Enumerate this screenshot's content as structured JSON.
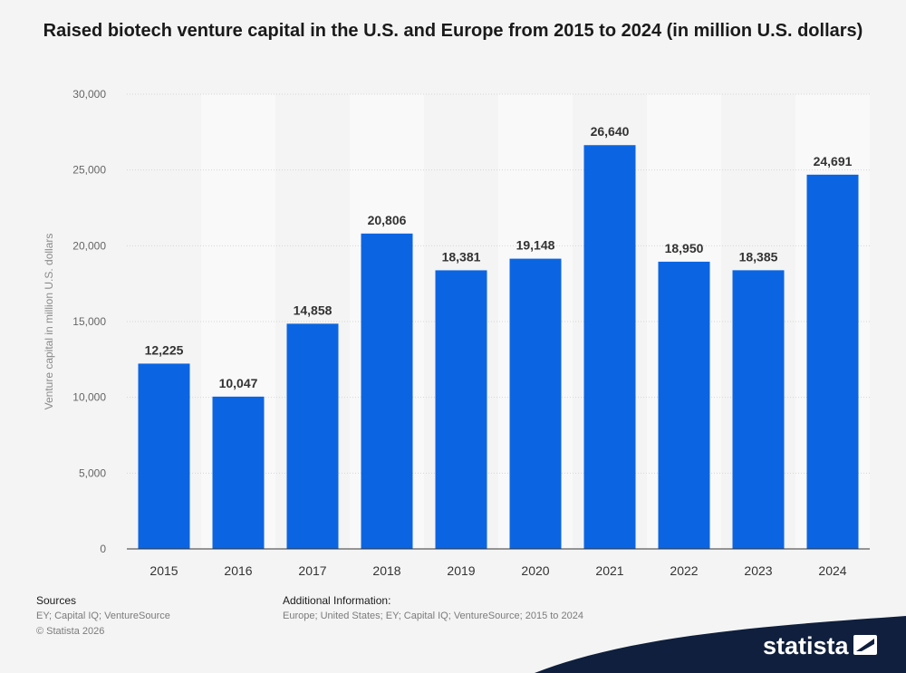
{
  "title": "Raised biotech venture capital in the U.S. and Europe from 2015 to 2024 (in million U.S. dollars)",
  "chart_data": {
    "type": "bar",
    "title": "Raised biotech venture capital in the U.S. and Europe from 2015 to 2024 (in million U.S. dollars)",
    "categories": [
      "2015",
      "2016",
      "2017",
      "2018",
      "2019",
      "2020",
      "2021",
      "2022",
      "2023",
      "2024"
    ],
    "values": [
      12225,
      10047,
      14858,
      20806,
      18381,
      19148,
      26640,
      18950,
      18385,
      24691
    ],
    "value_labels": [
      "12,225",
      "10,047",
      "14,858",
      "20,806",
      "18,381",
      "19,148",
      "26,640",
      "18,950",
      "18,385",
      "24,691"
    ],
    "xlabel": "",
    "ylabel": "Venture capital in million U.S. dollars",
    "ylim": [
      0,
      30000
    ],
    "yticks": [
      0,
      5000,
      10000,
      15000,
      20000,
      25000,
      30000
    ],
    "ytick_labels": [
      "0",
      "5,000",
      "10,000",
      "15,000",
      "20,000",
      "25,000",
      "30,000"
    ],
    "grid": true,
    "bar_color": "#0b65e3"
  },
  "footer": {
    "sources_heading": "Sources",
    "sources_line1": "EY; Capital IQ; VentureSource",
    "sources_line2": "© Statista 2026",
    "additional_heading": "Additional Information:",
    "additional_text": "Europe; United States; EY; Capital IQ; VentureSource; 2015 to 2024"
  },
  "brand": {
    "name": "statista",
    "color": "#0f1f3d"
  }
}
